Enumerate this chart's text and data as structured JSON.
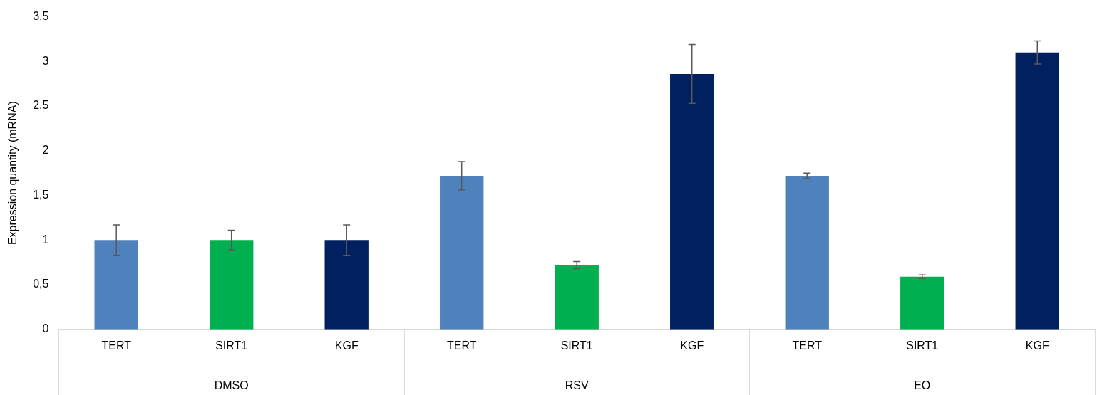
{
  "chart_data": {
    "type": "bar",
    "ylabel": "Expression quantity (mRNA)",
    "categories": [
      "TERT",
      "SIRT1",
      "KGF",
      "TERT",
      "SIRT1",
      "KGF",
      "TERT",
      "SIRT1",
      "KGF"
    ],
    "values": [
      1.0,
      1.0,
      1.0,
      1.72,
      0.72,
      2.86,
      1.72,
      0.59,
      3.1
    ],
    "errors": [
      0.17,
      0.11,
      0.17,
      0.16,
      0.04,
      0.33,
      0.03,
      0.02,
      0.13
    ],
    "colors": [
      "#4f81bd",
      "#00b050",
      "#002060",
      "#4f81bd",
      "#00b050",
      "#002060",
      "#4f81bd",
      "#00b050",
      "#002060"
    ],
    "ylim": [
      0,
      3.5
    ],
    "yticks": [
      {
        "value": 0,
        "label": "0"
      },
      {
        "value": 0.5,
        "label": "0,5"
      },
      {
        "value": 1,
        "label": "1"
      },
      {
        "value": 1.5,
        "label": "1,5"
      },
      {
        "value": 2,
        "label": "2"
      },
      {
        "value": 2.5,
        "label": "2,5"
      },
      {
        "value": 3,
        "label": "3"
      },
      {
        "value": 3.5,
        "label": "3,5"
      }
    ],
    "annotations": [
      "DMSO",
      "RSV",
      "EO"
    ],
    "grid": false,
    "legend": false
  }
}
